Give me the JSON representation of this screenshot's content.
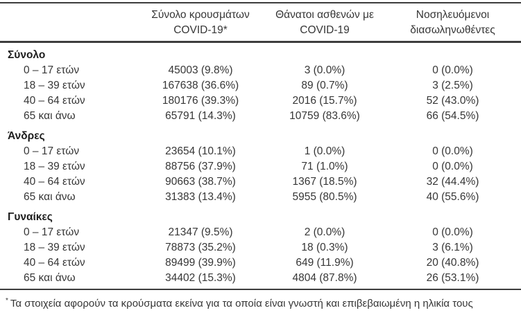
{
  "table": {
    "headers": [
      {
        "line1": "Σύνολο κρουσμάτων",
        "line2": "COVID-19*"
      },
      {
        "line1": "Θάνατοι ασθενών με",
        "line2": "COVID-19"
      },
      {
        "line1": "Νοσηλευόμενοι",
        "line2": "διασωληνωθέντες"
      }
    ],
    "sections": [
      {
        "label": "Σύνολο",
        "rows": [
          {
            "label": "0 – 17 ετών",
            "cases": "45003 (9.8%)",
            "deaths": "3 (0.0%)",
            "intubated": "0 (0.0%)"
          },
          {
            "label": "18 – 39 ετών",
            "cases": "167638 (36.6%)",
            "deaths": "89 (0.7%)",
            "intubated": "3 (2.5%)"
          },
          {
            "label": "40 – 64 ετών",
            "cases": "180176 (39.3%)",
            "deaths": "2016 (15.7%)",
            "intubated": "52 (43.0%)"
          },
          {
            "label": "65 και άνω",
            "cases": "65791 (14.3%)",
            "deaths": "10759 (83.6%)",
            "intubated": "66 (54.5%)"
          }
        ]
      },
      {
        "label": "Άνδρες",
        "rows": [
          {
            "label": "0 – 17 ετών",
            "cases": "23654 (10.1%)",
            "deaths": "1 (0.0%)",
            "intubated": "0 (0.0%)"
          },
          {
            "label": "18 – 39 ετών",
            "cases": "88756 (37.9%)",
            "deaths": "71 (1.0%)",
            "intubated": "0 (0.0%)"
          },
          {
            "label": "40 – 64 ετών",
            "cases": "90663 (38.7%)",
            "deaths": "1367 (18.5%)",
            "intubated": "32 (44.4%)"
          },
          {
            "label": "65 και άνω",
            "cases": "31383 (13.4%)",
            "deaths": "5955 (80.5%)",
            "intubated": "40 (55.6%)"
          }
        ]
      },
      {
        "label": "Γυναίκες",
        "rows": [
          {
            "label": "0 – 17 ετών",
            "cases": "21347 (9.5%)",
            "deaths": "2 (0.0%)",
            "intubated": "0 (0.0%)"
          },
          {
            "label": "18 – 39 ετών",
            "cases": "78873 (35.2%)",
            "deaths": "18 (0.3%)",
            "intubated": "3 (6.1%)"
          },
          {
            "label": "40 – 64 ετών",
            "cases": "89499 (39.9%)",
            "deaths": "649 (11.9%)",
            "intubated": "20 (40.8%)"
          },
          {
            "label": "65 και άνω",
            "cases": "34402 (15.3%)",
            "deaths": "4804 (87.8%)",
            "intubated": "26 (53.1%)"
          }
        ]
      }
    ],
    "footnote": {
      "marker": "*",
      "text": "Τα στοιχεία αφορούν τα κρούσματα εκείνα για τα οποία είναι γνωστή και επιβεβαιωμένη η ηλικία τους"
    }
  },
  "colors": {
    "text": "#363636",
    "rule": "#3d3d3d",
    "background": "#ffffff"
  }
}
